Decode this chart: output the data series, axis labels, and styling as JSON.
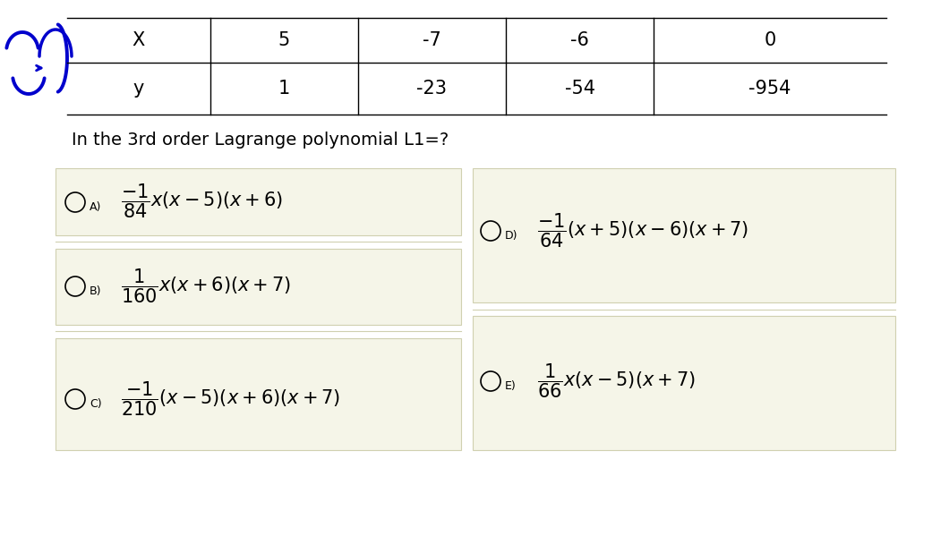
{
  "table_x_values": [
    "X",
    "5",
    "-7",
    "-6",
    "0"
  ],
  "table_y_values": [
    "y",
    "1",
    "-23",
    "-54",
    "-954"
  ],
  "question": "In the 3rd order Lagrange polynomial L1=?",
  "option_A_label": "A)",
  "option_A_math": "$\\dfrac{-1}{84}x(x-5)(x+6)$",
  "option_B_label": "B)",
  "option_B_math": "$\\dfrac{1}{160}x(x+6)(x+7)$",
  "option_C_label": "C)",
  "option_C_math": "$\\dfrac{-1}{210}(x-5)(x+6)(x+7)$",
  "option_D_label": "D)",
  "option_D_math": "$\\dfrac{-1}{64}(x+5)(x-6)(x+7)$",
  "option_E_label": "E)",
  "option_E_math": "$\\dfrac{1}{66}x(x-5)(x+7)$",
  "bg_color": "#f5f5e8",
  "white_bg": "#ffffff",
  "arrow_color": "#0000cc",
  "text_color": "#1a1a1a",
  "box_edge_color": "#d0d0b0"
}
